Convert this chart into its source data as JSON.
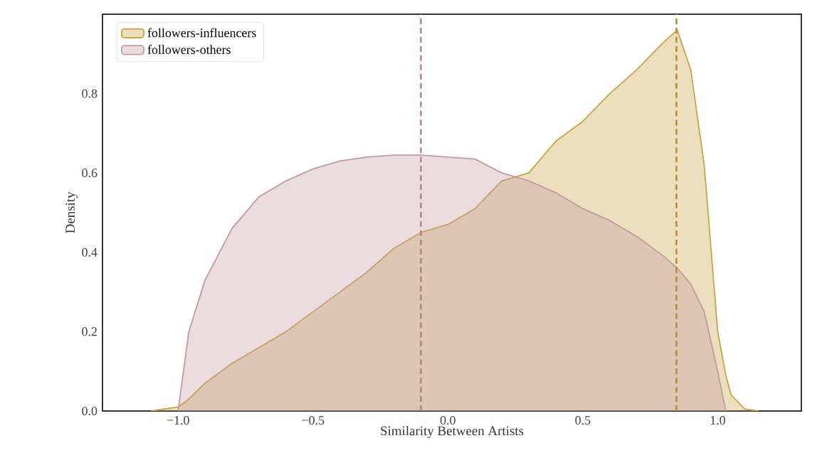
{
  "chart_data": {
    "type": "area",
    "xlabel": "Similarity Between Artists",
    "ylabel": "Density",
    "x": [
      -1.1,
      -1.0,
      -0.96,
      -0.9,
      -0.8,
      -0.7,
      -0.6,
      -0.5,
      -0.4,
      -0.3,
      -0.2,
      -0.1,
      0.0,
      0.1,
      0.2,
      0.3,
      0.4,
      0.5,
      0.6,
      0.7,
      0.8,
      0.85,
      0.9,
      0.95,
      1.0,
      1.03,
      1.05,
      1.1,
      1.15
    ],
    "series": [
      {
        "name": "followers-influencers",
        "color": "#c9a443",
        "values": [
          0.0,
          0.01,
          0.03,
          0.07,
          0.12,
          0.16,
          0.2,
          0.25,
          0.3,
          0.35,
          0.41,
          0.45,
          0.47,
          0.51,
          0.58,
          0.6,
          0.68,
          0.73,
          0.8,
          0.86,
          0.93,
          0.96,
          0.86,
          0.62,
          0.2,
          0.09,
          0.04,
          0.005,
          0.0
        ]
      },
      {
        "name": "followers-others",
        "color": "#c39aa2",
        "values": [
          null,
          0.0,
          0.2,
          0.33,
          0.46,
          0.54,
          0.58,
          0.61,
          0.63,
          0.64,
          0.645,
          0.645,
          0.64,
          0.635,
          0.6,
          0.58,
          0.55,
          0.51,
          0.48,
          0.44,
          0.39,
          0.36,
          0.32,
          0.25,
          0.1,
          0.0,
          null,
          null,
          null
        ]
      }
    ],
    "xlim": [
      -1.28,
      1.31
    ],
    "ylim": [
      0,
      1.0
    ],
    "xticks": [
      {
        "value": -1.0,
        "label": "−1.0"
      },
      {
        "value": -0.5,
        "label": "−0.5"
      },
      {
        "value": 0.0,
        "label": "0.0"
      },
      {
        "value": 0.5,
        "label": "0.5"
      },
      {
        "value": 1.0,
        "label": "1.0"
      }
    ],
    "yticks": [
      {
        "value": 0.0,
        "label": "0.0"
      },
      {
        "value": 0.2,
        "label": "0.2"
      },
      {
        "value": 0.4,
        "label": "0.4"
      },
      {
        "value": 0.6,
        "label": "0.6"
      },
      {
        "value": 0.8,
        "label": "0.8"
      }
    ],
    "ref_lines": [
      {
        "axis": "x",
        "value": -0.1,
        "color": "#b27f85",
        "line_style": "dashed"
      },
      {
        "axis": "x",
        "value": 0.847,
        "color": "#b08a2a",
        "line_style": "dashed"
      }
    ],
    "legend": "top left",
    "grid": false
  }
}
